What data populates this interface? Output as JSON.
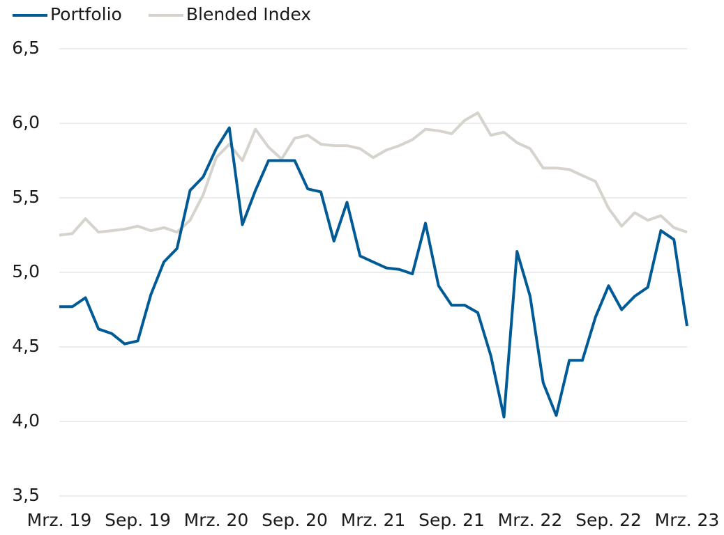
{
  "chart_data": {
    "type": "line",
    "categories": [
      "Mrz. 19",
      null,
      null,
      null,
      null,
      null,
      "Sep. 19",
      null,
      null,
      null,
      null,
      null,
      "Mrz. 20",
      null,
      null,
      null,
      null,
      null,
      "Sep. 20",
      null,
      null,
      null,
      null,
      null,
      "Mrz. 21",
      null,
      null,
      null,
      null,
      null,
      "Sep. 21",
      null,
      null,
      null,
      null,
      null,
      "Mrz. 22",
      null,
      null,
      null,
      null,
      null,
      "Sep. 22",
      null,
      null,
      null,
      null,
      null,
      "Mrz. 23"
    ],
    "series": [
      {
        "name": "Portfolio",
        "color": "#005a96",
        "values": [
          4.77,
          4.77,
          4.83,
          4.62,
          4.59,
          4.52,
          4.54,
          4.85,
          5.07,
          5.16,
          5.55,
          5.64,
          5.83,
          5.97,
          5.32,
          5.55,
          5.75,
          5.75,
          5.75,
          5.56,
          5.54,
          5.21,
          5.47,
          5.11,
          5.07,
          5.03,
          5.02,
          4.99,
          5.33,
          4.91,
          4.78,
          4.78,
          4.73,
          4.44,
          4.03,
          5.14,
          4.84,
          4.26,
          4.04,
          4.41,
          4.41,
          4.7,
          4.91,
          4.75,
          4.84,
          4.9,
          5.28,
          5.22,
          4.64
        ]
      },
      {
        "name": "Blended Index",
        "color": "#d6d2cc",
        "values": [
          5.25,
          5.26,
          5.36,
          5.27,
          5.28,
          5.29,
          5.31,
          5.28,
          5.3,
          5.27,
          5.35,
          5.52,
          5.77,
          5.86,
          5.75,
          5.96,
          5.84,
          5.76,
          5.9,
          5.92,
          5.86,
          5.85,
          5.85,
          5.83,
          5.77,
          5.82,
          5.85,
          5.89,
          5.96,
          5.95,
          5.93,
          6.02,
          6.07,
          5.92,
          5.94,
          5.87,
          5.83,
          5.7,
          5.7,
          5.69,
          5.65,
          5.61,
          5.43,
          5.31,
          5.4,
          5.35,
          5.38,
          5.3,
          5.27
        ]
      }
    ],
    "ylim": [
      3.5,
      6.5
    ],
    "yticks": [
      {
        "value": 3.5,
        "label": "3,5"
      },
      {
        "value": 4.0,
        "label": "4,0"
      },
      {
        "value": 4.5,
        "label": "4,5"
      },
      {
        "value": 5.0,
        "label": "5,0"
      },
      {
        "value": 5.5,
        "label": "5,5"
      },
      {
        "value": 6.0,
        "label": "6,0"
      },
      {
        "value": 6.5,
        "label": "6,5"
      }
    ],
    "grid": true,
    "legend": "top-left"
  }
}
